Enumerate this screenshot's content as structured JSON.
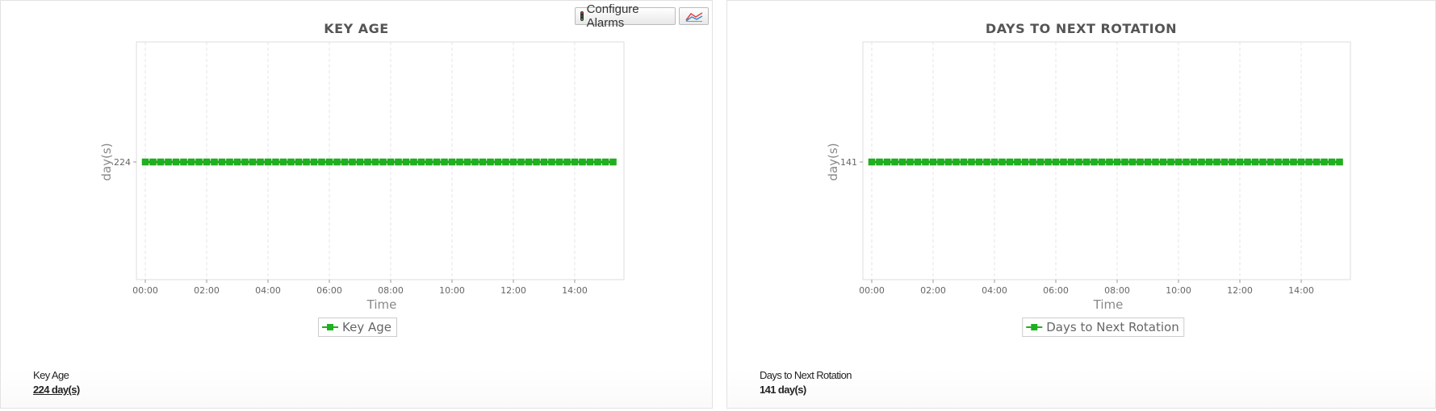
{
  "toolbar": {
    "configure_alarms_label": "Configure Alarms",
    "configure_alarms_icon": "traffic-light-icon",
    "chart_type_icon": "line-chart-icon"
  },
  "panels": [
    {
      "title": "KEY AGE",
      "summary_label": "Key Age",
      "summary_value": "224 day(s)"
    },
    {
      "title": "DAYS TO NEXT ROTATION",
      "summary_label": "Days to Next Rotation",
      "summary_value": "141 day(s)"
    }
  ],
  "chart_data": [
    {
      "type": "line",
      "title": "KEY AGE",
      "xlabel": "Time",
      "ylabel": "day(s)",
      "x_ticks": [
        "00:00",
        "02:00",
        "04:00",
        "06:00",
        "08:00",
        "10:00",
        "12:00",
        "14:00"
      ],
      "y_ticks": [
        "224"
      ],
      "x_start": "00:00",
      "x_end": "15:15",
      "interval_minutes": 15,
      "series": [
        {
          "name": "Key Age",
          "value": 224,
          "color": "#1fb01f"
        }
      ],
      "grid": "vertical dashed",
      "legend": "bottom-center"
    },
    {
      "type": "line",
      "title": "DAYS TO NEXT ROTATION",
      "xlabel": "Time",
      "ylabel": "day(s)",
      "x_ticks": [
        "00:00",
        "02:00",
        "04:00",
        "06:00",
        "08:00",
        "10:00",
        "12:00",
        "14:00"
      ],
      "y_ticks": [
        "141"
      ],
      "x_start": "00:00",
      "x_end": "15:15",
      "interval_minutes": 15,
      "series": [
        {
          "name": "Days to Next Rotation",
          "value": 141,
          "color": "#1fb01f"
        }
      ],
      "grid": "vertical dashed",
      "legend": "bottom-center"
    }
  ]
}
